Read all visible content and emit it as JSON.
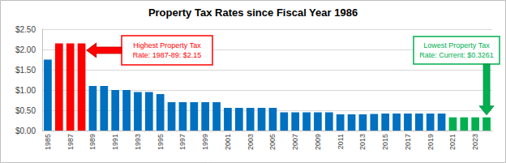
{
  "chart_data": {
    "type": "bar",
    "title": "Property Tax Rates since Fiscal Year 1986",
    "categories": [
      "1985",
      null,
      "1987",
      null,
      "1989",
      null,
      "1991",
      null,
      "1993",
      null,
      "1995",
      null,
      "1997",
      null,
      "1999",
      null,
      "2001",
      null,
      "2003",
      null,
      "2005",
      null,
      "2007",
      null,
      "2009",
      null,
      "2011",
      null,
      "2013",
      null,
      "2015",
      null,
      "2017",
      null,
      "2019",
      null,
      "2021",
      null,
      "2023",
      null
    ],
    "values": [
      1.75,
      2.15,
      2.15,
      2.15,
      1.1,
      1.1,
      1.0,
      1.0,
      0.95,
      0.95,
      0.9,
      0.7,
      0.7,
      0.7,
      0.7,
      0.7,
      0.56,
      0.56,
      0.56,
      0.56,
      0.56,
      0.45,
      0.45,
      0.45,
      0.45,
      0.45,
      0.4,
      0.4,
      0.4,
      0.41,
      0.42,
      0.42,
      0.42,
      0.42,
      0.42,
      0.42,
      0.3261,
      0.3261,
      0.3261,
      0.3261
    ],
    "colors": [
      "#0070c0",
      "#ff0000",
      "#ff0000",
      "#ff0000",
      "#0070c0",
      "#0070c0",
      "#0070c0",
      "#0070c0",
      "#0070c0",
      "#0070c0",
      "#0070c0",
      "#0070c0",
      "#0070c0",
      "#0070c0",
      "#0070c0",
      "#0070c0",
      "#0070c0",
      "#0070c0",
      "#0070c0",
      "#0070c0",
      "#0070c0",
      "#0070c0",
      "#0070c0",
      "#0070c0",
      "#0070c0",
      "#0070c0",
      "#0070c0",
      "#0070c0",
      "#0070c0",
      "#0070c0",
      "#0070c0",
      "#0070c0",
      "#0070c0",
      "#0070c0",
      "#0070c0",
      "#0070c0",
      "#00b050",
      "#00b050",
      "#00b050",
      "#00b050"
    ],
    "ylim": [
      0,
      2.5
    ],
    "yticks": [
      {
        "value": 0,
        "label": "$0.00"
      },
      {
        "value": 0.5,
        "label": "$0.50"
      },
      {
        "value": 1,
        "label": "$1.00"
      },
      {
        "value": 1.5,
        "label": "$1.50"
      },
      {
        "value": 2,
        "label": "$2.00"
      },
      {
        "value": 2.5,
        "label": "$2.50"
      }
    ],
    "grid": true,
    "annotations": [
      {
        "lines": [
          "Highest Property Tax",
          "Rate: 1987-89: $2.15"
        ],
        "color": "#ff0000"
      },
      {
        "lines": [
          "Lowest Property Tax",
          "Rate: Current: $0.3261"
        ],
        "color": "#00b050"
      }
    ]
  }
}
